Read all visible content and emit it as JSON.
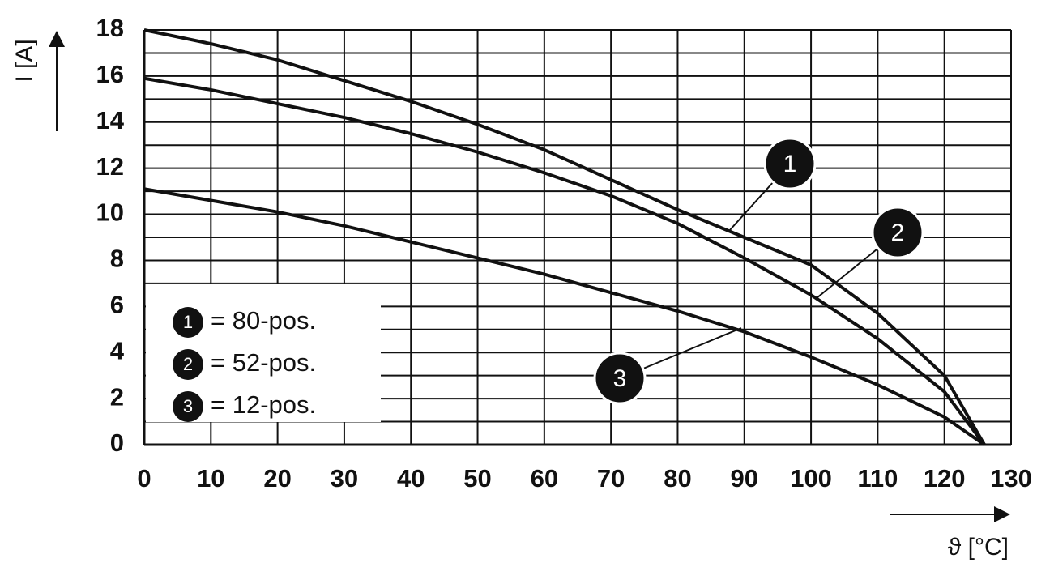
{
  "chart_data": {
    "type": "line",
    "y_label": "I [A]",
    "x_label": "ϑ [°C]",
    "xlim": [
      0,
      130
    ],
    "xticks": [
      0,
      10,
      20,
      30,
      40,
      50,
      60,
      70,
      80,
      90,
      100,
      110,
      120,
      130
    ],
    "ylim": [
      0,
      18
    ],
    "yticks": [
      0,
      2,
      4,
      6,
      8,
      10,
      12,
      14,
      16,
      18
    ],
    "y_gridlines": [
      0,
      1,
      2,
      3,
      4,
      5,
      6,
      7,
      8,
      9,
      10,
      11,
      12,
      13,
      14,
      15,
      16,
      17,
      18
    ],
    "grid": true,
    "x": [
      0,
      10,
      20,
      30,
      40,
      50,
      60,
      70,
      80,
      90,
      100,
      110,
      120,
      126
    ],
    "series": [
      {
        "marker": "1",
        "name": "= 80-pos.",
        "color": "#111111",
        "values": [
          18,
          17.4,
          16.7,
          15.8,
          14.9,
          13.9,
          12.8,
          11.5,
          10.2,
          9.0,
          7.8,
          5.7,
          3.0,
          0
        ]
      },
      {
        "marker": "2",
        "name": "= 52-pos.",
        "color": "#111111",
        "values": [
          15.9,
          15.4,
          14.8,
          14.2,
          13.5,
          12.7,
          11.8,
          10.8,
          9.6,
          8.1,
          6.5,
          4.6,
          2.3,
          0
        ]
      },
      {
        "marker": "3",
        "name": "= 12-pos.",
        "color": "#111111",
        "values": [
          11.1,
          10.6,
          10.1,
          9.5,
          8.8,
          8.1,
          7.4,
          6.6,
          5.8,
          4.9,
          3.8,
          2.6,
          1.2,
          0
        ]
      }
    ]
  }
}
